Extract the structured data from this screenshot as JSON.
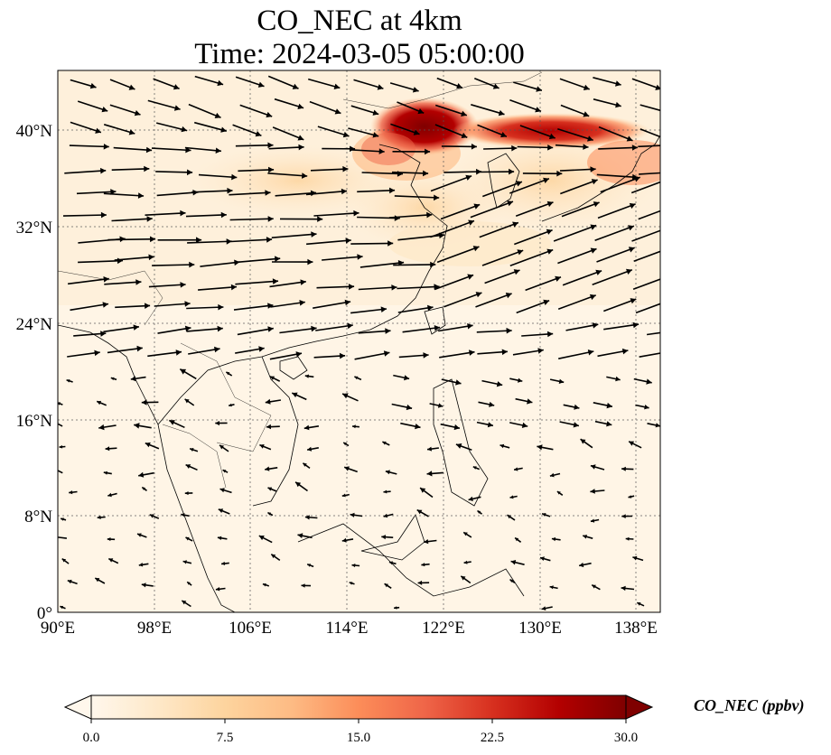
{
  "title": {
    "line1": "CO_NEC at 4km",
    "line2": "Time: 2024-03-05 05:00:00"
  },
  "axes": {
    "lat_ticks": [
      "0°",
      "8°N",
      "16°N",
      "24°N",
      "32°N",
      "40°N"
    ],
    "lat_values": [
      0,
      8,
      16,
      24,
      32,
      40
    ],
    "lon_ticks": [
      "90°E",
      "98°E",
      "106°E",
      "114°E",
      "122°E",
      "130°E",
      "138°E"
    ],
    "lon_values": [
      90,
      98,
      106,
      114,
      122,
      130,
      138
    ],
    "lon_range": [
      90,
      140
    ],
    "lat_range": [
      0,
      45
    ]
  },
  "colorbar": {
    "label": "CO_NEC (ppbv)",
    "ticks": [
      "0.0",
      "7.5",
      "15.0",
      "22.5",
      "30.0"
    ],
    "min": 0,
    "max": 30,
    "colormap": "OrRd",
    "colors": [
      "#fff7ec",
      "#fee8c8",
      "#fdd49e",
      "#fdbb84",
      "#fc8d59",
      "#ef6548",
      "#d7301f",
      "#b30000",
      "#7f0000"
    ]
  },
  "plume_description_regions": [
    {
      "lon": [
        117,
        124
      ],
      "lat": [
        37,
        42.5
      ],
      "value": 30
    },
    {
      "lon": [
        124,
        140
      ],
      "lat": [
        38,
        41
      ],
      "value": 22
    }
  ]
}
